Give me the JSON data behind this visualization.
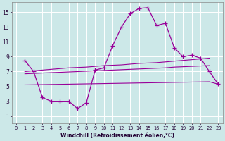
{
  "xlabel": "Windchill (Refroidissement éolien,°C)",
  "bg_color": "#cce8e8",
  "grid_color": "#ffffff",
  "line_color": "#990099",
  "ylim": [
    0,
    16
  ],
  "xlim": [
    -0.5,
    23.5
  ],
  "yticks": [
    1,
    3,
    5,
    7,
    9,
    11,
    13,
    15
  ],
  "xticks": [
    0,
    1,
    2,
    3,
    4,
    5,
    6,
    7,
    8,
    9,
    10,
    11,
    12,
    13,
    14,
    15,
    16,
    17,
    18,
    19,
    20,
    21,
    22,
    23
  ],
  "windchill_x": [
    1,
    2,
    3,
    4,
    5,
    6,
    7,
    8,
    9,
    10,
    11,
    12,
    13,
    14,
    15,
    16,
    17,
    18,
    19,
    20,
    21,
    22,
    23
  ],
  "windchill_y": [
    8.5,
    7.0,
    3.5,
    3.0,
    3.0,
    3.0,
    2.0,
    2.8,
    7.2,
    7.5,
    10.5,
    13.0,
    14.8,
    15.5,
    15.6,
    13.2,
    13.5,
    10.2,
    9.0,
    9.2,
    8.8,
    7.0,
    5.3
  ],
  "upper_x": [
    1,
    2,
    3,
    4,
    5,
    6,
    7,
    8,
    9,
    10,
    11,
    12,
    13,
    14,
    15,
    16,
    17,
    18,
    19,
    20,
    21,
    22
  ],
  "upper_y": [
    7.0,
    7.1,
    7.2,
    7.3,
    7.4,
    7.5,
    7.55,
    7.6,
    7.7,
    7.8,
    7.85,
    7.9,
    8.0,
    8.1,
    8.15,
    8.2,
    8.3,
    8.4,
    8.5,
    8.6,
    8.7,
    8.8
  ],
  "mid_x": [
    1,
    2,
    3,
    4,
    5,
    6,
    7,
    8,
    9,
    10,
    11,
    12,
    13,
    14,
    15,
    16,
    17,
    18,
    19,
    20,
    21,
    22
  ],
  "mid_y": [
    6.7,
    6.75,
    6.8,
    6.85,
    6.9,
    6.95,
    7.0,
    7.05,
    7.1,
    7.15,
    7.2,
    7.25,
    7.3,
    7.35,
    7.4,
    7.45,
    7.5,
    7.6,
    7.65,
    7.7,
    7.75,
    7.8
  ],
  "lower_x": [
    1,
    2,
    3,
    4,
    5,
    6,
    7,
    8,
    9,
    10,
    11,
    12,
    13,
    14,
    15,
    16,
    17,
    18,
    19,
    20,
    21,
    22,
    23
  ],
  "lower_y": [
    5.2,
    5.22,
    5.24,
    5.26,
    5.28,
    5.3,
    5.32,
    5.34,
    5.36,
    5.38,
    5.4,
    5.42,
    5.44,
    5.46,
    5.48,
    5.5,
    5.52,
    5.54,
    5.56,
    5.58,
    5.6,
    5.62,
    5.3
  ]
}
